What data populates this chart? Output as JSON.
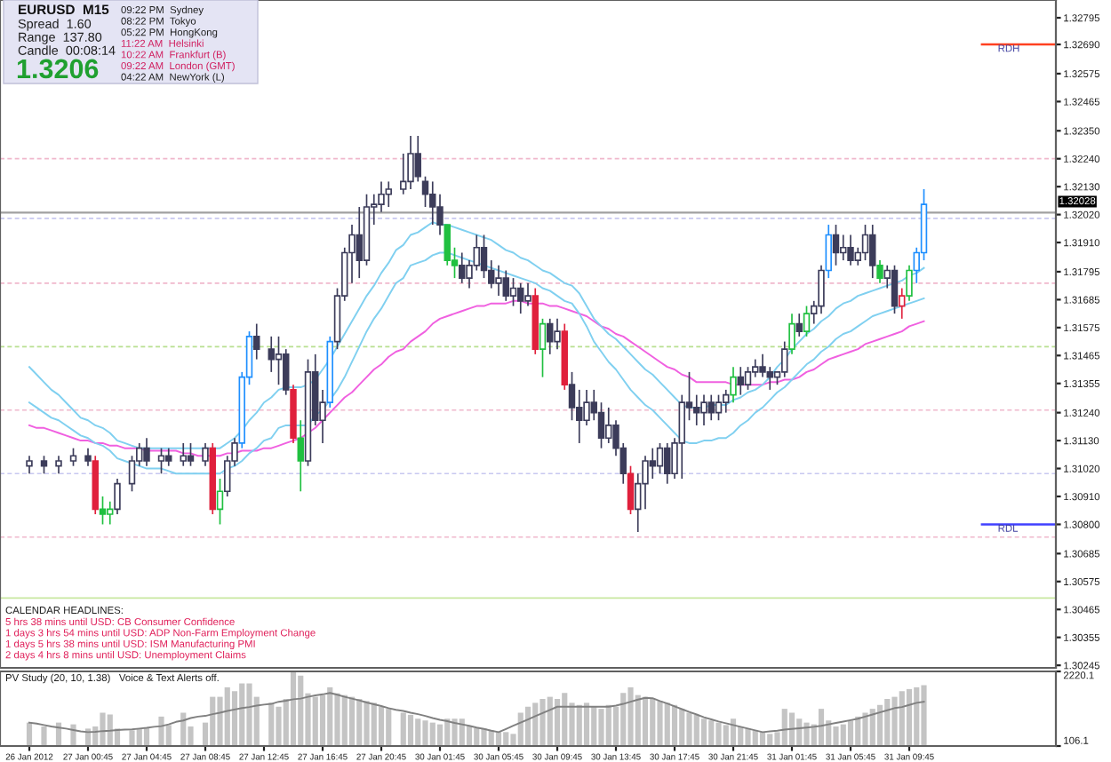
{
  "chart_data": [
    {
      "type": "candlestick",
      "title": "EURUSD  M15",
      "categories": [
        null,
        null,
        null,
        null,
        null,
        null,
        null,
        null,
        null,
        null,
        null,
        null,
        null,
        null,
        null,
        null,
        null,
        null,
        null,
        null,
        null,
        null,
        null,
        null,
        null,
        null,
        null,
        null,
        null,
        null,
        null,
        null,
        null,
        null,
        null,
        null,
        null,
        null,
        null,
        null,
        null,
        null,
        null,
        null,
        null,
        null,
        null,
        null,
        null,
        null,
        null,
        null,
        null,
        null,
        null,
        null,
        null,
        null,
        null,
        null,
        null,
        null,
        null,
        null,
        null,
        null,
        null,
        null,
        null,
        null,
        null,
        null,
        null,
        null,
        null,
        null,
        null,
        null,
        null,
        null,
        null,
        null,
        null,
        null,
        null,
        null,
        null,
        null,
        null,
        null,
        null,
        null,
        null,
        null,
        null,
        null,
        null,
        null,
        null,
        null,
        null,
        null,
        null,
        null,
        null,
        null,
        null,
        null,
        null,
        null,
        null,
        null,
        null,
        null,
        null,
        null,
        null,
        null,
        null,
        null,
        null,
        null,
        null
      ],
      "ohlc": [
        [
          1.3103,
          1.3107,
          1.31,
          1.3105
        ],
        null,
        [
          1.3105,
          1.3107,
          1.31,
          1.3103
        ],
        null,
        [
          1.3103,
          1.3107,
          1.31,
          1.3105
        ],
        null,
        [
          1.3105,
          1.311,
          1.3103,
          1.3107
        ],
        null,
        [
          1.3107,
          1.311,
          1.3103,
          1.3105
        ],
        [
          1.3105,
          1.3107,
          1.3084,
          1.3086
        ],
        [
          1.3086,
          1.3091,
          1.308,
          1.3084
        ],
        [
          1.3084,
          1.3089,
          1.308,
          1.3086
        ],
        [
          1.3086,
          1.3098,
          1.3084,
          1.3096
        ],
        null,
        [
          1.3096,
          1.3107,
          1.3093,
          1.3105
        ],
        [
          1.3105,
          1.3112,
          1.3103,
          1.311
        ],
        [
          1.311,
          1.3114,
          1.3103,
          1.3105
        ],
        null,
        [
          1.3105,
          1.311,
          1.31,
          1.3107
        ],
        [
          1.3107,
          1.311,
          1.3103,
          1.3105
        ],
        null,
        [
          1.3105,
          1.3112,
          1.3103,
          1.3107
        ],
        [
          1.3107,
          1.3112,
          1.3103,
          1.3105
        ],
        null,
        [
          1.3105,
          1.3112,
          1.3103,
          1.311
        ],
        [
          1.311,
          1.3112,
          1.3084,
          1.3086
        ],
        [
          1.3086,
          1.3098,
          1.308,
          1.3093
        ],
        [
          1.3093,
          1.3107,
          1.3091,
          1.3105
        ],
        [
          1.3105,
          1.3114,
          1.3103,
          1.3112
        ],
        [
          1.3112,
          1.314,
          1.311,
          1.3138
        ],
        [
          1.3138,
          1.3156,
          1.3135,
          1.3154
        ],
        [
          1.3154,
          1.3159,
          1.3145,
          1.3149
        ],
        null,
        [
          1.3149,
          1.3154,
          1.314,
          1.3145
        ],
        [
          1.3145,
          1.3154,
          1.3135,
          1.3147
        ],
        [
          1.3147,
          1.3149,
          1.3131,
          1.3133
        ],
        [
          1.3133,
          1.3135,
          1.3112,
          1.3114
        ],
        [
          1.3114,
          1.3121,
          1.3093,
          1.3105
        ],
        [
          1.3105,
          1.3145,
          1.3103,
          1.314
        ],
        [
          1.314,
          1.3147,
          1.3119,
          1.3121
        ],
        [
          1.3121,
          1.3133,
          1.3112,
          1.3128
        ],
        [
          1.3128,
          1.3154,
          1.3126,
          1.3152
        ],
        [
          1.3152,
          1.3173,
          1.3149,
          1.317
        ],
        [
          1.317,
          1.3189,
          1.3168,
          1.3187
        ],
        [
          1.3187,
          1.3198,
          1.3175,
          1.3194
        ],
        [
          1.3194,
          1.3205,
          1.3177,
          1.3184
        ],
        [
          1.3184,
          1.321,
          1.3182,
          1.3205
        ],
        [
          1.3205,
          1.321,
          1.3198,
          1.3206
        ],
        [
          1.3206,
          1.3215,
          1.3203,
          1.321
        ],
        [
          1.321,
          1.3215,
          1.3205,
          1.3212
        ],
        null,
        [
          1.3212,
          1.3226,
          1.321,
          1.3215
        ],
        [
          1.3215,
          1.3233,
          1.3212,
          1.3226
        ],
        [
          1.3226,
          1.3233,
          1.3215,
          1.3217
        ],
        [
          1.3215,
          1.3217,
          1.3205,
          1.321
        ],
        [
          1.321,
          1.3215,
          1.3198,
          1.3205
        ],
        [
          1.3205,
          1.321,
          1.3194,
          1.3198
        ],
        [
          1.3198,
          1.3198,
          1.3182,
          1.3184
        ],
        [
          1.3184,
          1.3189,
          1.3177,
          1.3182
        ],
        [
          1.3182,
          1.3187,
          1.3175,
          1.3177
        ],
        [
          1.3177,
          1.3184,
          1.3173,
          1.3182
        ],
        [
          1.3182,
          1.3194,
          1.318,
          1.3189
        ],
        [
          1.3189,
          1.3194,
          1.3177,
          1.318
        ],
        [
          1.318,
          1.3184,
          1.3173,
          1.3175
        ],
        [
          1.3175,
          1.3182,
          1.317,
          1.3177
        ],
        [
          1.3177,
          1.318,
          1.3168,
          1.317
        ],
        [
          1.317,
          1.3177,
          1.3166,
          1.3173
        ],
        [
          1.3173,
          1.3175,
          1.3163,
          1.3168
        ],
        [
          1.3168,
          1.3175,
          1.3166,
          1.317
        ],
        [
          1.317,
          1.3173,
          1.3147,
          1.3149
        ],
        [
          1.3149,
          1.3161,
          1.3138,
          1.3159
        ],
        [
          1.3159,
          1.3161,
          1.3147,
          1.3152
        ],
        [
          1.3152,
          1.3161,
          1.3149,
          1.3156
        ],
        [
          1.3156,
          1.3159,
          1.3133,
          1.3135
        ],
        [
          1.3135,
          1.314,
          1.3121,
          1.3126
        ],
        [
          1.3126,
          1.3133,
          1.3112,
          1.3121
        ],
        [
          1.3121,
          1.3133,
          1.3119,
          1.3128
        ],
        [
          1.3128,
          1.3133,
          1.3121,
          1.3124
        ],
        [
          1.3124,
          1.3128,
          1.311,
          1.3114
        ],
        [
          1.3114,
          1.3126,
          1.3112,
          1.3119
        ],
        [
          1.3119,
          1.3121,
          1.3107,
          1.311
        ],
        [
          1.311,
          1.3112,
          1.3096,
          1.31
        ],
        [
          1.31,
          1.3103,
          1.3084,
          1.3086
        ],
        [
          1.3086,
          1.31,
          1.3077,
          1.3096
        ],
        [
          1.3096,
          1.3107,
          1.3086,
          1.3105
        ],
        [
          1.3105,
          1.311,
          1.3098,
          1.3103
        ],
        [
          1.3103,
          1.3112,
          1.31,
          1.311
        ],
        [
          1.311,
          1.3112,
          1.3096,
          1.31
        ],
        [
          1.31,
          1.3114,
          1.3098,
          1.3112
        ],
        [
          1.3112,
          1.3131,
          1.3098,
          1.3128
        ],
        [
          1.3128,
          1.314,
          1.3121,
          1.3126
        ],
        [
          1.3126,
          1.3131,
          1.3119,
          1.3124
        ],
        [
          1.3124,
          1.3131,
          1.3119,
          1.3128
        ],
        [
          1.3128,
          1.3131,
          1.3121,
          1.3124
        ],
        [
          1.3124,
          1.3131,
          1.3121,
          1.3128
        ],
        [
          1.3128,
          1.3133,
          1.3124,
          1.3131
        ],
        [
          1.3131,
          1.3142,
          1.3128,
          1.3138
        ],
        [
          1.3138,
          1.3142,
          1.3131,
          1.3135
        ],
        [
          1.3135,
          1.3142,
          1.3133,
          1.314
        ],
        [
          1.314,
          1.3145,
          1.3138,
          1.3142
        ],
        [
          1.3142,
          1.3147,
          1.3138,
          1.314
        ],
        [
          1.314,
          1.3142,
          1.3133,
          1.3138
        ],
        [
          1.3138,
          1.314,
          1.3135,
          1.314
        ],
        [
          1.314,
          1.3152,
          1.3138,
          1.3149
        ],
        [
          1.3149,
          1.3163,
          1.3147,
          1.3159
        ],
        [
          1.3159,
          1.3163,
          1.3154,
          1.3156
        ],
        [
          1.3156,
          1.3166,
          1.3154,
          1.3163
        ],
        [
          1.3163,
          1.3168,
          1.3159,
          1.3166
        ],
        [
          1.3166,
          1.3182,
          1.3163,
          1.318
        ],
        [
          1.318,
          1.3198,
          1.3177,
          1.3194
        ],
        [
          1.3194,
          1.3198,
          1.3182,
          1.3187
        ],
        [
          1.3187,
          1.3194,
          1.3184,
          1.3189
        ],
        [
          1.3189,
          1.3194,
          1.3182,
          1.3184
        ],
        [
          1.3184,
          1.3189,
          1.3182,
          1.3187
        ],
        [
          1.3187,
          1.3198,
          1.3184,
          1.3194
        ],
        [
          1.3194,
          1.3198,
          1.3177,
          1.3182
        ],
        [
          1.3182,
          1.3184,
          1.3175,
          1.3177
        ],
        [
          1.3177,
          1.3182,
          1.3173,
          1.318
        ],
        [
          1.318,
          1.3182,
          1.3163,
          1.3166
        ],
        [
          1.3166,
          1.3173,
          1.3161,
          1.317
        ],
        [
          1.317,
          1.3182,
          1.3168,
          1.318
        ],
        [
          1.318,
          1.3189,
          1.3175,
          1.3187
        ],
        [
          1.3187,
          1.3212,
          1.3184,
          1.3206
        ]
      ],
      "colors": [
        "#3c3c5a",
        null,
        "#3c3c5a",
        null,
        "#3c3c5a",
        null,
        "#3c3c5a",
        null,
        "#3c3c5a",
        "#e0203c",
        "#20c040",
        "#20c040",
        "#3c3c5a",
        null,
        "#3c3c5a",
        "#3c3c5a",
        "#3c3c5a",
        null,
        "#3c3c5a",
        "#3c3c5a",
        null,
        "#3c3c5a",
        "#3c3c5a",
        null,
        "#3c3c5a",
        "#e0203c",
        "#20c040",
        "#3c3c5a",
        "#3c3c5a",
        "#1e8fff",
        "#1e8fff",
        "#3c3c5a",
        null,
        "#3c3c5a",
        "#3c3c5a",
        "#3c3c5a",
        "#e0203c",
        "#20c040",
        "#3c3c5a",
        "#3c3c5a",
        "#3c3c5a",
        "#1e8fff",
        "#3c3c5a",
        "#3c3c5a",
        "#3c3c5a",
        "#3c3c5a",
        "#3c3c5a",
        "#3c3c5a",
        "#3c3c5a",
        "#3c3c5a",
        null,
        "#3c3c5a",
        "#3c3c5a",
        "#3c3c5a",
        "#3c3c5a",
        "#3c3c5a",
        "#3c3c5a",
        "#20c040",
        "#20c040",
        "#3c3c5a",
        "#3c3c5a",
        "#3c3c5a",
        "#3c3c5a",
        "#3c3c5a",
        "#3c3c5a",
        "#3c3c5a",
        "#3c3c5a",
        "#3c3c5a",
        "#3c3c5a",
        "#e0203c",
        "#20c040",
        "#3c3c5a",
        "#3c3c5a",
        "#e0203c",
        "#3c3c5a",
        "#3c3c5a",
        "#3c3c5a",
        "#3c3c5a",
        "#3c3c5a",
        "#3c3c5a",
        "#3c3c5a",
        "#3c3c5a",
        "#e0203c",
        "#3c3c5a",
        "#3c3c5a",
        "#3c3c5a",
        "#3c3c5a",
        "#3c3c5a",
        "#3c3c5a",
        "#3c3c5a",
        "#3c3c5a",
        "#3c3c5a",
        "#3c3c5a",
        "#3c3c5a",
        "#3c3c5a",
        "#3c3c5a",
        "#20c040",
        "#3c3c5a",
        "#3c3c5a",
        "#3c3c5a",
        "#3c3c5a",
        "#3c3c5a",
        "#3c3c5a",
        "#3c3c5a",
        "#20c040",
        "#3c3c5a",
        "#20c040",
        "#3c3c5a",
        "#3c3c5a",
        "#1e8fff",
        "#3c3c5a",
        "#3c3c5a",
        "#3c3c5a",
        "#3c3c5a",
        "#3c3c5a",
        "#3c3c5a",
        "#20c040",
        "#3c3c5a",
        "#3c3c5a",
        "#e0203c",
        "#20c040",
        "#1e8fff",
        "#1e8fff"
      ],
      "series": [
        {
          "type": "line",
          "color": "#f060e0",
          "values": [
            1.3119,
            1.3118,
            1.3118,
            1.3117,
            1.3116,
            1.3115,
            1.3114,
            1.3113,
            1.3113,
            1.3112,
            1.3112,
            1.3111,
            1.3111,
            1.311,
            1.311,
            1.311,
            1.3109,
            1.3109,
            1.3109,
            1.3109,
            1.3109,
            1.3108,
            1.3108,
            1.3107,
            1.3107,
            1.3107,
            1.3107,
            1.3108,
            1.3108,
            1.3109,
            1.3109,
            1.3109,
            1.311,
            1.311,
            1.3111,
            1.3112,
            1.3113,
            1.3114,
            1.3116,
            1.3118,
            1.3121,
            1.3124,
            1.3127,
            1.313,
            1.3132,
            1.3135,
            1.3138,
            1.3141,
            1.3143,
            1.3146,
            1.3148,
            1.3149,
            1.3152,
            1.3154,
            1.3156,
            1.3159,
            1.3161,
            1.3162,
            1.3163,
            1.3164,
            1.3165,
            1.3166,
            1.3166,
            1.3167,
            1.3167,
            1.3167,
            1.3168,
            1.3168,
            1.3167,
            1.3167,
            1.3167,
            1.3166,
            1.3166,
            1.3165,
            1.3164,
            1.3163,
            1.3162,
            1.316,
            1.3158,
            1.3157,
            1.3155,
            1.3154,
            1.3152,
            1.315,
            1.3148,
            1.3146,
            1.3144,
            1.3142,
            1.3141,
            1.3139,
            1.3138,
            1.3136,
            1.3136,
            1.3136,
            1.3136,
            1.3136,
            1.3135,
            1.3135,
            1.3135,
            1.3135,
            1.3135,
            1.3136,
            1.3136,
            1.3137,
            1.3137,
            1.3138,
            1.314,
            1.3141,
            1.3143,
            1.3145,
            1.3146,
            1.3147,
            1.3148,
            1.3149,
            1.3151,
            1.3152,
            1.3153,
            1.3154,
            1.3155,
            1.3156,
            1.3158,
            1.3159,
            1.316
          ]
        },
        {
          "type": "line",
          "color": "#80d0f0",
          "values": [
            1.3142,
            1.3139,
            1.3136,
            1.3133,
            1.3131,
            1.3128,
            1.3125,
            1.3122,
            1.3121,
            1.3119,
            1.3118,
            1.3116,
            1.3113,
            1.3112,
            1.3111,
            1.311,
            1.311,
            1.311,
            1.311,
            1.311,
            1.311,
            1.311,
            1.311,
            1.311,
            1.311,
            1.311,
            1.311,
            1.3112,
            1.3114,
            1.3117,
            1.3121,
            1.3124,
            1.3128,
            1.313,
            1.3133,
            1.3134,
            1.3134,
            1.3134,
            1.3135,
            1.3137,
            1.3141,
            1.3145,
            1.315,
            1.3155,
            1.316,
            1.3165,
            1.317,
            1.3174,
            1.3179,
            1.3183,
            1.3188,
            1.319,
            1.3194,
            1.3195,
            1.3197,
            1.3199,
            1.3198,
            1.3198,
            1.3197,
            1.3196,
            1.3195,
            1.3194,
            1.3193,
            1.3192,
            1.319,
            1.3188,
            1.3187,
            1.3185,
            1.3184,
            1.3182,
            1.318,
            1.3179,
            1.3177,
            1.3175,
            1.3174,
            1.3171,
            1.3166,
            1.3161,
            1.3158,
            1.3155,
            1.3153,
            1.315,
            1.3147,
            1.3144,
            1.3141,
            1.3139,
            1.3136,
            1.3133,
            1.313,
            1.3127,
            1.3126,
            1.3126,
            1.3126,
            1.3127,
            1.3127,
            1.3127,
            1.3129,
            1.313,
            1.3132,
            1.3133,
            1.3135,
            1.3138,
            1.3142,
            1.3145,
            1.3149,
            1.3152,
            1.3155,
            1.3157,
            1.316,
            1.3162,
            1.3165,
            1.3167,
            1.3168,
            1.317,
            1.3171,
            1.3172,
            1.3173,
            1.3174,
            1.3175,
            1.3176,
            1.3178,
            1.3179,
            1.3181
          ]
        },
        {
          "type": "line",
          "color": "#80d0f0",
          "values": [
            1.3128,
            1.3126,
            1.3124,
            1.3122,
            1.3121,
            1.3119,
            1.3117,
            1.3115,
            1.3114,
            1.3112,
            1.3111,
            1.3109,
            1.3106,
            1.3105,
            1.3104,
            1.3103,
            1.3102,
            1.3102,
            1.3102,
            1.3101,
            1.31,
            1.31,
            1.31,
            1.31,
            1.31,
            1.31,
            1.31,
            1.3102,
            1.3103,
            1.3105,
            1.3108,
            1.311,
            1.3113,
            1.3114,
            1.3118,
            1.3119,
            1.3119,
            1.3119,
            1.3119,
            1.3123,
            1.3125,
            1.3129,
            1.3133,
            1.3138,
            1.3144,
            1.315,
            1.3156,
            1.3161,
            1.3165,
            1.317,
            1.3175,
            1.3177,
            1.3182,
            1.3183,
            1.3184,
            1.3186,
            1.3187,
            1.3187,
            1.3186,
            1.3185,
            1.3184,
            1.3183,
            1.3182,
            1.3181,
            1.318,
            1.3179,
            1.3178,
            1.3177,
            1.3176,
            1.3175,
            1.3173,
            1.3172,
            1.317,
            1.3168,
            1.3167,
            1.3163,
            1.3158,
            1.3152,
            1.3148,
            1.3144,
            1.3141,
            1.3137,
            1.3133,
            1.313,
            1.3127,
            1.3125,
            1.3122,
            1.3119,
            1.3116,
            1.3113,
            1.3112,
            1.3112,
            1.3113,
            1.3113,
            1.3114,
            1.3114,
            1.3116,
            1.3119,
            1.3121,
            1.3124,
            1.3126,
            1.3129,
            1.3132,
            1.3134,
            1.3137,
            1.314,
            1.3143,
            1.3145,
            1.3148,
            1.315,
            1.3153,
            1.3155,
            1.3156,
            1.3158,
            1.316,
            1.3162,
            1.3163,
            1.3164,
            1.3165,
            1.3166,
            1.3167,
            1.3168,
            1.3169
          ]
        }
      ],
      "ylim": [
        1.30235,
        1.32865
      ],
      "yticks": [
        1.32795,
        {
          "value": 1.3269,
          "label": "1.32690"
        },
        1.32575,
        1.32465,
        {
          "value": 1.3235,
          "label": "1.32350"
        },
        {
          "value": 1.3224,
          "label": "1.32240"
        },
        {
          "value": 1.3213,
          "label": "1.32130"
        },
        {
          "value": 1.3202,
          "label": "1.32020"
        },
        {
          "value": 1.3191,
          "label": "1.31910"
        },
        1.31795,
        1.31685,
        1.31575,
        1.31465,
        1.31355,
        {
          "value": 1.3124,
          "label": "1.31240"
        },
        {
          "value": 1.3113,
          "label": "1.31130"
        },
        {
          "value": 1.3102,
          "label": "1.31020"
        },
        {
          "value": 1.3091,
          "label": "1.30910"
        },
        {
          "value": 1.308,
          "label": "1.30800"
        },
        1.30685,
        1.30575,
        1.30465,
        1.30355,
        1.30245
      ],
      "tick_labels": "y",
      "ref_lines": [
        {
          "axis": "y",
          "value": 1.32028,
          "label": "1.32028",
          "color": "#a0a0a0",
          "line_style": "solid"
        },
        {
          "axis": "y",
          "value": 1.3269,
          "label": "RDH",
          "color": "#ff4020",
          "line_style": "solid"
        },
        {
          "axis": "y",
          "value": 1.308,
          "label": "RDL",
          "color": "#4040ff",
          "line_style": "solid"
        },
        {
          "axis": "y",
          "value": 1.3224,
          "color": "#f0b8cc",
          "line_style": "dashed"
        },
        {
          "axis": "y",
          "value": 1.32005,
          "color": "#c8c8f0",
          "line_style": "dashed"
        },
        {
          "axis": "y",
          "value": 1.3175,
          "color": "#f0b8cc",
          "line_style": "dashed"
        },
        {
          "axis": "y",
          "value": 1.315,
          "color": "#b8e090",
          "line_style": "dashed"
        },
        {
          "axis": "y",
          "value": 1.3125,
          "color": "#f0b8cc",
          "line_style": "dashed"
        },
        {
          "axis": "y",
          "value": 1.31,
          "color": "#c8c8f0",
          "line_style": "dashed"
        },
        {
          "axis": "y",
          "value": 1.3075,
          "color": "#f0b8cc",
          "line_style": "dashed"
        },
        {
          "axis": "y",
          "value": 1.3051,
          "color": "#c8e8a0",
          "line_style": "solid"
        }
      ],
      "annotations": [
        "Spread  1.60",
        "Range  137.80",
        "Candle  00:08:14",
        "1.3206",
        "09:22 PM  Sydney",
        "08:22 PM  Tokyo",
        "05:22 PM  HongKong",
        "11:22 AM  Helsinki",
        "10:22 AM  Frankfurt (B)",
        "09:22 AM  London (GMT)",
        "04:22 AM  NewYork (L)",
        "CALENDAR HEADLINES:",
        "5 hrs 38 mins until USD: CB Consumer Confidence",
        "1 days 3 hrs 54 mins until USD: ADP Non-Farm Employment Change",
        "1 days 5 hrs 38 mins until USD: ISM Manufacturing PMI",
        "2 days 4 hrs 8 mins until USD: Unemployment Claims"
      ]
    },
    {
      "type": "bar",
      "categories": [
        "26 Jan 2012",
        null,
        null,
        null,
        null,
        null,
        null,
        null,
        "27 Jan 00:45",
        null,
        null,
        null,
        null,
        null,
        null,
        null,
        "27 Jan 04:45",
        null,
        null,
        null,
        null,
        null,
        null,
        null,
        "27 Jan 08:45",
        null,
        null,
        null,
        null,
        null,
        null,
        null,
        "27 Jan 12:45",
        null,
        null,
        null,
        null,
        null,
        null,
        null,
        "27 Jan 16:45",
        null,
        null,
        null,
        null,
        null,
        null,
        null,
        "27 Jan 20:45",
        null,
        null,
        null,
        null,
        null,
        null,
        null,
        "30 Jan 01:45",
        null,
        null,
        null,
        null,
        null,
        null,
        null,
        "30 Jan 05:45",
        null,
        null,
        null,
        null,
        null,
        null,
        null,
        "30 Jan 09:45",
        null,
        null,
        null,
        null,
        null,
        null,
        null,
        "30 Jan 13:45",
        null,
        null,
        null,
        null,
        null,
        null,
        null,
        "30 Jan 17:45",
        null,
        null,
        null,
        null,
        null,
        null,
        null,
        "30 Jan 21:45",
        null,
        null,
        null,
        null,
        null,
        null,
        null,
        "31 Jan 01:45",
        null,
        null,
        null,
        null,
        null,
        null,
        null,
        "31 Jan 05:45",
        null,
        null,
        null,
        null,
        null,
        null,
        null,
        "31 Jan 09:45",
        null,
        null
      ],
      "series": [
        {
          "type": "bar",
          "color": "#c4c4c4",
          "values": [
            770,
            null,
            660,
            null,
            770,
            null,
            720,
            null,
            600,
            660,
            1050,
            1000,
            600,
            null,
            550,
            600,
            610,
            null,
            940,
            700,
            null,
            1050,
            660,
            null,
            770,
            1500,
            1500,
            1770,
            1660,
            1880,
            1880,
            1500,
            null,
            1330,
            1220,
            1440,
            2200,
            2100,
            1600,
            1500,
            1550,
            1770,
            1600,
            1550,
            1500,
            1440,
            1380,
            1330,
            1220,
            1160,
            null,
            1050,
            990,
            880,
            830,
            770,
            720,
            880,
            880,
            880,
            660,
            610,
            600,
            550,
            500,
            500,
            450,
            1050,
            1220,
            1330,
            1440,
            1500,
            1440,
            1610,
            1330,
            1270,
            1330,
            1220,
            1160,
            1270,
            1220,
            1610,
            1770,
            1550,
            1500,
            1440,
            1380,
            1330,
            1270,
            1160,
            1050,
            990,
            880,
            830,
            770,
            700,
            880,
            660,
            600,
            550,
            500,
            450,
            500,
            1160,
            1050,
            880,
            770,
            720,
            1160,
            830,
            660,
            720,
            830,
            940,
            1050,
            1160,
            1270,
            1440,
            1500,
            1660,
            1720,
            1770,
            1830
          ]
        },
        {
          "type": "line",
          "color": "#808080",
          "values": [
            770,
            740,
            700,
            660,
            630,
            600,
            560,
            520,
            500,
            510,
            530,
            540,
            560,
            570,
            580,
            600,
            620,
            650,
            670,
            720,
            790,
            830,
            900,
            940,
            960,
            1010,
            1050,
            1100,
            1140,
            1180,
            1210,
            1250,
            1280,
            1300,
            1360,
            1390,
            1430,
            1450,
            1500,
            1540,
            1570,
            1610,
            1560,
            1500,
            1450,
            1400,
            1340,
            1290,
            1240,
            1180,
            1130,
            1100,
            1050,
            1010,
            960,
            900,
            850,
            810,
            760,
            720,
            680,
            630,
            590,
            540,
            500,
            590,
            680,
            770,
            860,
            950,
            1040,
            1130,
            1220,
            1220,
            1220,
            1220,
            1220,
            1220,
            1220,
            1220,
            1250,
            1300,
            1360,
            1420,
            1470,
            1460,
            1380,
            1310,
            1230,
            1150,
            1070,
            1000,
            920,
            860,
            800,
            750,
            700,
            650,
            600,
            550,
            500,
            520,
            540,
            570,
            590,
            610,
            630,
            650,
            680,
            720,
            760,
            800,
            840,
            880,
            940,
            1000,
            1060,
            1120,
            1180,
            1210,
            1270,
            1330,
            1360
          ]
        }
      ],
      "ylim": [
        106.1,
        2220.1
      ],
      "yticks": [
        106.1,
        2220.1
      ],
      "annotations": [
        "PV Study (20, 10, 1.38)   Voice & Text Alerts off."
      ]
    }
  ]
}
